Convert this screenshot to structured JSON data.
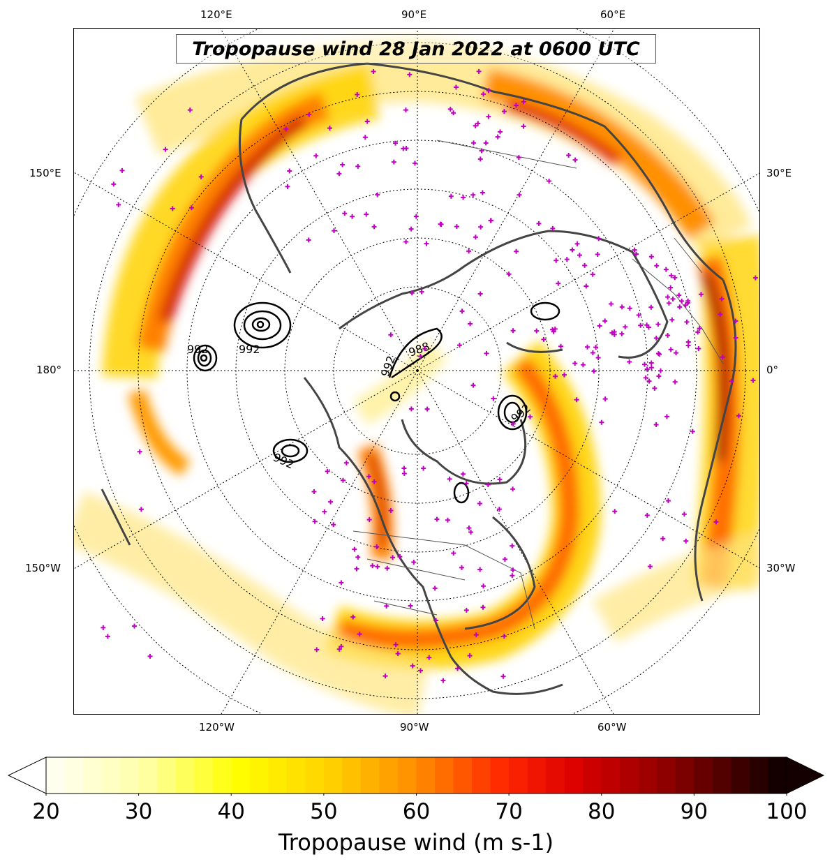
{
  "title": "Tropopause wind 28 Jan 2022 at 0600 UTC",
  "longitude_labels": {
    "top": [
      "120°E",
      "90°E",
      "60°E"
    ],
    "bottom": [
      "120°W",
      "90°W",
      "60°W"
    ],
    "left": [
      "150°E",
      "180°",
      "150°W"
    ],
    "right": [
      "30°E",
      "0°",
      "30°W"
    ]
  },
  "contour_labels": [
    "992",
    "988",
    "992",
    "992",
    "992",
    "992"
  ],
  "colorbar": {
    "label": "Tropopause wind (m s-1)",
    "ticks": [
      "20",
      "30",
      "40",
      "50",
      "60",
      "70",
      "80",
      "90",
      "100"
    ],
    "min": 20,
    "max": 100,
    "step": 2,
    "extend": "both"
  },
  "colors": {
    "station_marker": "#c000c0",
    "coastline": "#444444",
    "contour": "#000000"
  }
}
